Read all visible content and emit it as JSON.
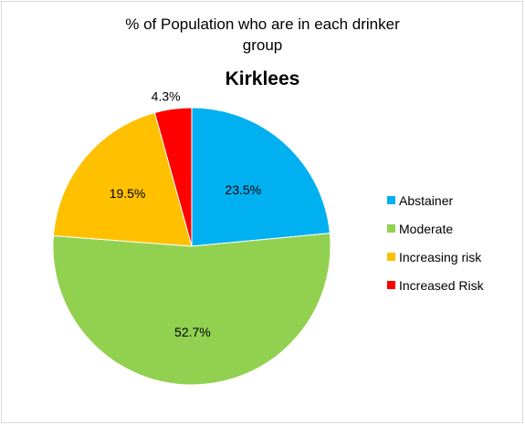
{
  "chart_data": {
    "type": "pie",
    "title_line1": "% of Population  who are in each drinker",
    "title_line2": "group",
    "subtitle": "Kirklees",
    "categories": [
      "Abstainer",
      "Moderate",
      "Increasing risk",
      "Increased Risk"
    ],
    "values": [
      23.5,
      52.7,
      19.5,
      4.3
    ],
    "value_labels": [
      "23.5%",
      "52.7%",
      "19.5%",
      "4.3%"
    ],
    "colors": [
      "#00b0f0",
      "#92d050",
      "#ffc000",
      "#ff0000"
    ],
    "legend_position": "right",
    "start_angle": "12 o'clock",
    "direction": "clockwise"
  }
}
